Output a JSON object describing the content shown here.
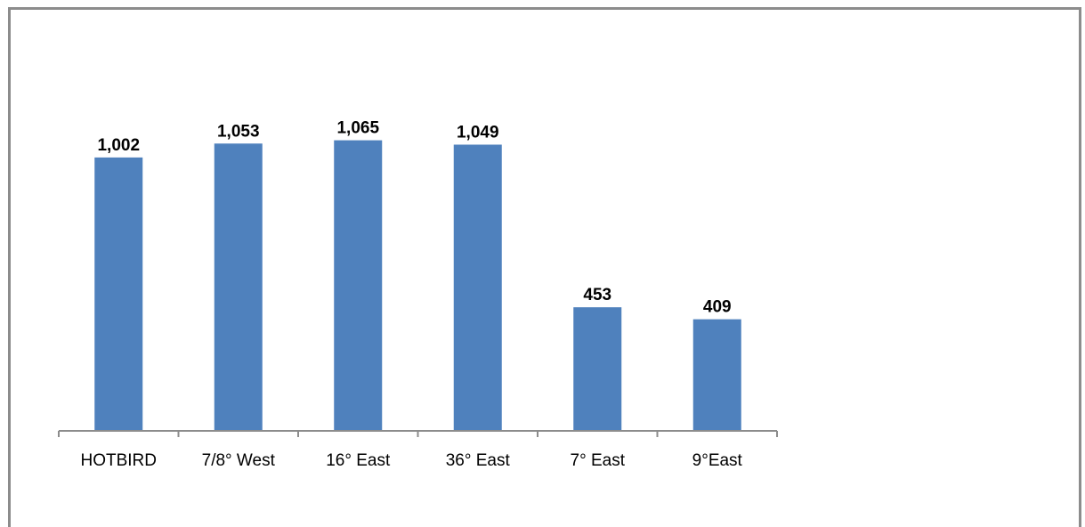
{
  "chart_data": {
    "type": "bar",
    "categories": [
      "HOTBIRD",
      "7/8° West",
      "16° East",
      "36° East",
      "7° East",
      "9°East"
    ],
    "values": [
      1002,
      1053,
      1065,
      1049,
      453,
      409
    ],
    "value_labels": [
      "1,002",
      "1,053",
      "1,065",
      "1,049",
      "453",
      "409"
    ],
    "title": "",
    "xlabel": "",
    "ylabel": "",
    "ylim": [
      0,
      1300
    ],
    "grid": false,
    "legend": "none",
    "bar_color": "#4f81bd"
  }
}
